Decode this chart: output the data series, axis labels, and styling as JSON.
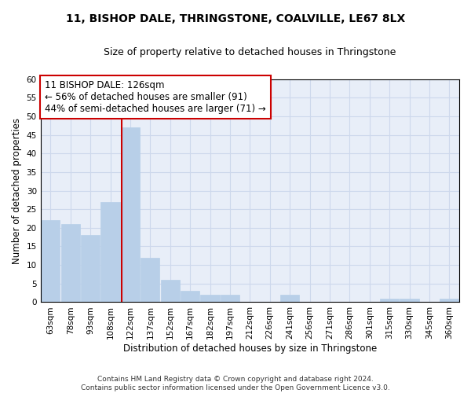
{
  "title1": "11, BISHOP DALE, THRINGSTONE, COALVILLE, LE67 8LX",
  "title2": "Size of property relative to detached houses in Thringstone",
  "xlabel": "Distribution of detached houses by size in Thringstone",
  "ylabel": "Number of detached properties",
  "categories": [
    "63sqm",
    "78sqm",
    "93sqm",
    "108sqm",
    "122sqm",
    "137sqm",
    "152sqm",
    "167sqm",
    "182sqm",
    "197sqm",
    "212sqm",
    "226sqm",
    "241sqm",
    "256sqm",
    "271sqm",
    "286sqm",
    "301sqm",
    "315sqm",
    "330sqm",
    "345sqm",
    "360sqm"
  ],
  "values": [
    22,
    21,
    18,
    27,
    47,
    12,
    6,
    3,
    2,
    2,
    0,
    0,
    2,
    0,
    0,
    0,
    0,
    1,
    1,
    0,
    1
  ],
  "bar_color": "#b8cfe8",
  "bar_edge_color": "#b8cfe8",
  "vline_x": 3.55,
  "vline_color": "#cc0000",
  "annotation_text": "11 BISHOP DALE: 126sqm\n← 56% of detached houses are smaller (91)\n44% of semi-detached houses are larger (71) →",
  "annotation_box_color": "#ffffff",
  "annotation_box_edge_color": "#cc0000",
  "ylim": [
    0,
    60
  ],
  "yticks": [
    0,
    5,
    10,
    15,
    20,
    25,
    30,
    35,
    40,
    45,
    50,
    55,
    60
  ],
  "grid_color": "#cdd8ec",
  "background_color": "#e8eef8",
  "footer": "Contains HM Land Registry data © Crown copyright and database right 2024.\nContains public sector information licensed under the Open Government Licence v3.0.",
  "title1_fontsize": 10,
  "title2_fontsize": 9,
  "xlabel_fontsize": 8.5,
  "ylabel_fontsize": 8.5,
  "annotation_fontsize": 8.5,
  "tick_fontsize": 7.5,
  "footer_fontsize": 6.5
}
